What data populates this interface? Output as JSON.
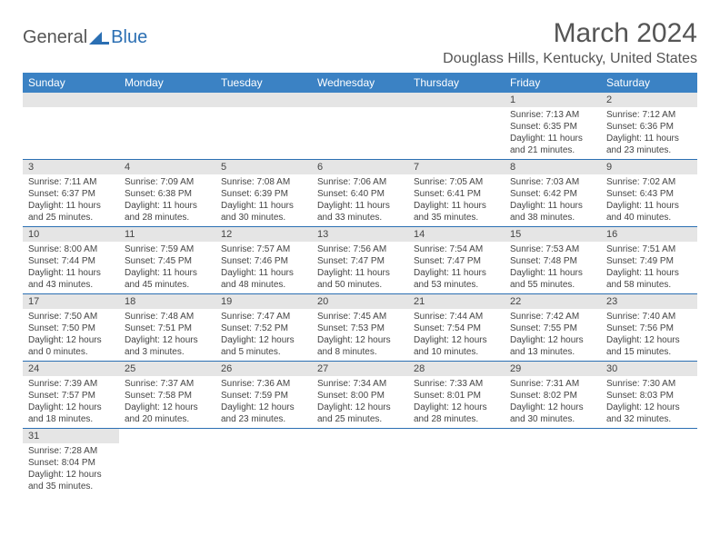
{
  "logo": {
    "general": "General",
    "blue": "Blue"
  },
  "title": "March 2024",
  "location": "Douglass Hills, Kentucky, United States",
  "colors": {
    "header_bg": "#3b82c4",
    "header_text": "#ffffff",
    "daynum_bg": "#e5e5e5",
    "border": "#2b6fb3",
    "text": "#444444",
    "title_text": "#555555"
  },
  "weekdays": [
    "Sunday",
    "Monday",
    "Tuesday",
    "Wednesday",
    "Thursday",
    "Friday",
    "Saturday"
  ],
  "weeks": [
    [
      null,
      null,
      null,
      null,
      null,
      {
        "n": "1",
        "sr": "Sunrise: 7:13 AM",
        "ss": "Sunset: 6:35 PM",
        "dl1": "Daylight: 11 hours",
        "dl2": "and 21 minutes."
      },
      {
        "n": "2",
        "sr": "Sunrise: 7:12 AM",
        "ss": "Sunset: 6:36 PM",
        "dl1": "Daylight: 11 hours",
        "dl2": "and 23 minutes."
      }
    ],
    [
      {
        "n": "3",
        "sr": "Sunrise: 7:11 AM",
        "ss": "Sunset: 6:37 PM",
        "dl1": "Daylight: 11 hours",
        "dl2": "and 25 minutes."
      },
      {
        "n": "4",
        "sr": "Sunrise: 7:09 AM",
        "ss": "Sunset: 6:38 PM",
        "dl1": "Daylight: 11 hours",
        "dl2": "and 28 minutes."
      },
      {
        "n": "5",
        "sr": "Sunrise: 7:08 AM",
        "ss": "Sunset: 6:39 PM",
        "dl1": "Daylight: 11 hours",
        "dl2": "and 30 minutes."
      },
      {
        "n": "6",
        "sr": "Sunrise: 7:06 AM",
        "ss": "Sunset: 6:40 PM",
        "dl1": "Daylight: 11 hours",
        "dl2": "and 33 minutes."
      },
      {
        "n": "7",
        "sr": "Sunrise: 7:05 AM",
        "ss": "Sunset: 6:41 PM",
        "dl1": "Daylight: 11 hours",
        "dl2": "and 35 minutes."
      },
      {
        "n": "8",
        "sr": "Sunrise: 7:03 AM",
        "ss": "Sunset: 6:42 PM",
        "dl1": "Daylight: 11 hours",
        "dl2": "and 38 minutes."
      },
      {
        "n": "9",
        "sr": "Sunrise: 7:02 AM",
        "ss": "Sunset: 6:43 PM",
        "dl1": "Daylight: 11 hours",
        "dl2": "and 40 minutes."
      }
    ],
    [
      {
        "n": "10",
        "sr": "Sunrise: 8:00 AM",
        "ss": "Sunset: 7:44 PM",
        "dl1": "Daylight: 11 hours",
        "dl2": "and 43 minutes."
      },
      {
        "n": "11",
        "sr": "Sunrise: 7:59 AM",
        "ss": "Sunset: 7:45 PM",
        "dl1": "Daylight: 11 hours",
        "dl2": "and 45 minutes."
      },
      {
        "n": "12",
        "sr": "Sunrise: 7:57 AM",
        "ss": "Sunset: 7:46 PM",
        "dl1": "Daylight: 11 hours",
        "dl2": "and 48 minutes."
      },
      {
        "n": "13",
        "sr": "Sunrise: 7:56 AM",
        "ss": "Sunset: 7:47 PM",
        "dl1": "Daylight: 11 hours",
        "dl2": "and 50 minutes."
      },
      {
        "n": "14",
        "sr": "Sunrise: 7:54 AM",
        "ss": "Sunset: 7:47 PM",
        "dl1": "Daylight: 11 hours",
        "dl2": "and 53 minutes."
      },
      {
        "n": "15",
        "sr": "Sunrise: 7:53 AM",
        "ss": "Sunset: 7:48 PM",
        "dl1": "Daylight: 11 hours",
        "dl2": "and 55 minutes."
      },
      {
        "n": "16",
        "sr": "Sunrise: 7:51 AM",
        "ss": "Sunset: 7:49 PM",
        "dl1": "Daylight: 11 hours",
        "dl2": "and 58 minutes."
      }
    ],
    [
      {
        "n": "17",
        "sr": "Sunrise: 7:50 AM",
        "ss": "Sunset: 7:50 PM",
        "dl1": "Daylight: 12 hours",
        "dl2": "and 0 minutes."
      },
      {
        "n": "18",
        "sr": "Sunrise: 7:48 AM",
        "ss": "Sunset: 7:51 PM",
        "dl1": "Daylight: 12 hours",
        "dl2": "and 3 minutes."
      },
      {
        "n": "19",
        "sr": "Sunrise: 7:47 AM",
        "ss": "Sunset: 7:52 PM",
        "dl1": "Daylight: 12 hours",
        "dl2": "and 5 minutes."
      },
      {
        "n": "20",
        "sr": "Sunrise: 7:45 AM",
        "ss": "Sunset: 7:53 PM",
        "dl1": "Daylight: 12 hours",
        "dl2": "and 8 minutes."
      },
      {
        "n": "21",
        "sr": "Sunrise: 7:44 AM",
        "ss": "Sunset: 7:54 PM",
        "dl1": "Daylight: 12 hours",
        "dl2": "and 10 minutes."
      },
      {
        "n": "22",
        "sr": "Sunrise: 7:42 AM",
        "ss": "Sunset: 7:55 PM",
        "dl1": "Daylight: 12 hours",
        "dl2": "and 13 minutes."
      },
      {
        "n": "23",
        "sr": "Sunrise: 7:40 AM",
        "ss": "Sunset: 7:56 PM",
        "dl1": "Daylight: 12 hours",
        "dl2": "and 15 minutes."
      }
    ],
    [
      {
        "n": "24",
        "sr": "Sunrise: 7:39 AM",
        "ss": "Sunset: 7:57 PM",
        "dl1": "Daylight: 12 hours",
        "dl2": "and 18 minutes."
      },
      {
        "n": "25",
        "sr": "Sunrise: 7:37 AM",
        "ss": "Sunset: 7:58 PM",
        "dl1": "Daylight: 12 hours",
        "dl2": "and 20 minutes."
      },
      {
        "n": "26",
        "sr": "Sunrise: 7:36 AM",
        "ss": "Sunset: 7:59 PM",
        "dl1": "Daylight: 12 hours",
        "dl2": "and 23 minutes."
      },
      {
        "n": "27",
        "sr": "Sunrise: 7:34 AM",
        "ss": "Sunset: 8:00 PM",
        "dl1": "Daylight: 12 hours",
        "dl2": "and 25 minutes."
      },
      {
        "n": "28",
        "sr": "Sunrise: 7:33 AM",
        "ss": "Sunset: 8:01 PM",
        "dl1": "Daylight: 12 hours",
        "dl2": "and 28 minutes."
      },
      {
        "n": "29",
        "sr": "Sunrise: 7:31 AM",
        "ss": "Sunset: 8:02 PM",
        "dl1": "Daylight: 12 hours",
        "dl2": "and 30 minutes."
      },
      {
        "n": "30",
        "sr": "Sunrise: 7:30 AM",
        "ss": "Sunset: 8:03 PM",
        "dl1": "Daylight: 12 hours",
        "dl2": "and 32 minutes."
      }
    ],
    [
      {
        "n": "31",
        "sr": "Sunrise: 7:28 AM",
        "ss": "Sunset: 8:04 PM",
        "dl1": "Daylight: 12 hours",
        "dl2": "and 35 minutes."
      },
      null,
      null,
      null,
      null,
      null,
      null
    ]
  ]
}
